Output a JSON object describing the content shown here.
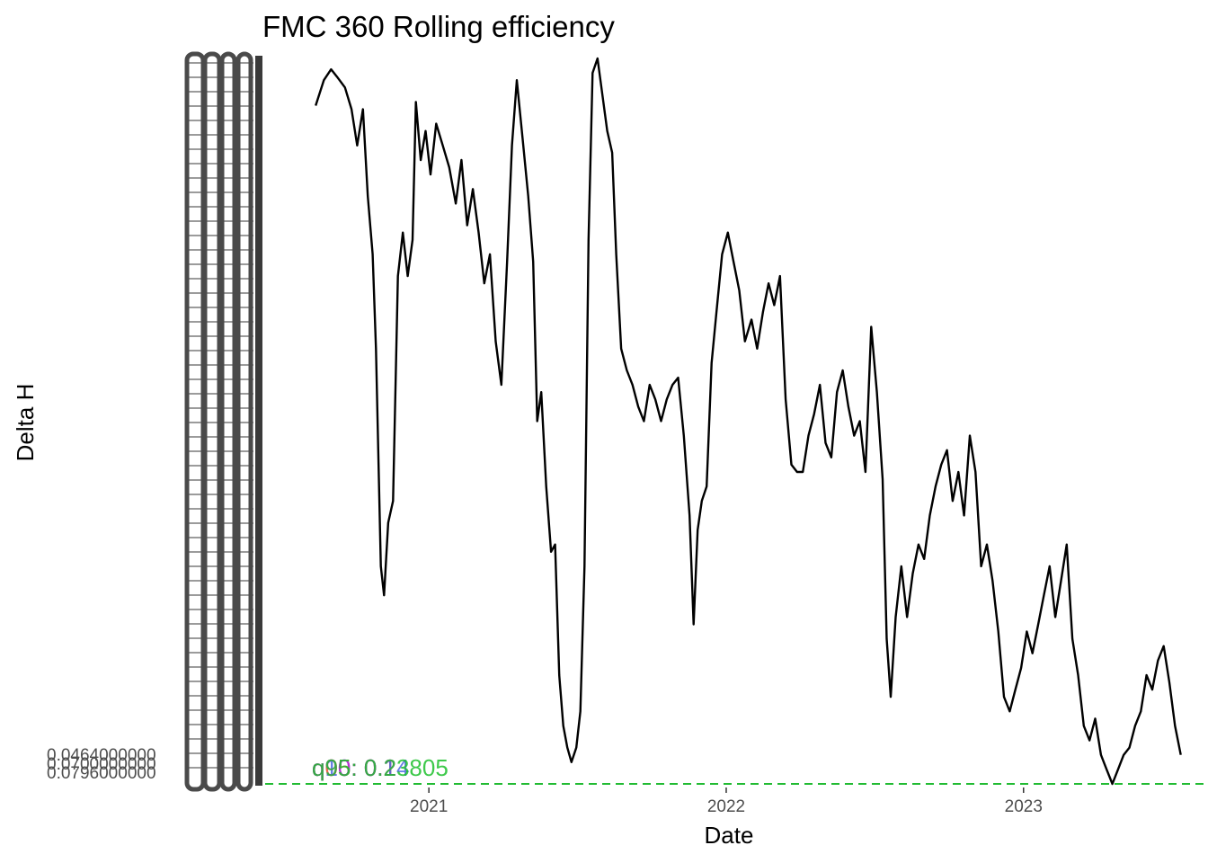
{
  "chart_data": {
    "type": "line",
    "title": "FMC 360 Rolling efficiency",
    "xlabel": "Date",
    "ylabel": "Delta H",
    "x_range": [
      "2020-06-14",
      "2023-07-31"
    ],
    "ylim": [
      0.0,
      1.0
    ],
    "x_ticks": [
      {
        "date": "2021-01-01",
        "label": "2021"
      },
      {
        "date": "2022-01-01",
        "label": "2022"
      },
      {
        "date": "2023-01-01",
        "label": "2023"
      }
    ],
    "y_tick_labels_visible": [
      "0.0464000000",
      "0.0700000000",
      "0.0796000000"
    ],
    "series": [
      {
        "color": "#000000",
        "points": [
          [
            "2020-08-15",
            0.935
          ],
          [
            "2020-08-25",
            0.97
          ],
          [
            "2020-09-03",
            0.985
          ],
          [
            "2020-09-10",
            0.975
          ],
          [
            "2020-09-20",
            0.96
          ],
          [
            "2020-09-28",
            0.93
          ],
          [
            "2020-10-05",
            0.88
          ],
          [
            "2020-10-12",
            0.93
          ],
          [
            "2020-10-18",
            0.81
          ],
          [
            "2020-10-24",
            0.73
          ],
          [
            "2020-10-28",
            0.6
          ],
          [
            "2020-11-03",
            0.3
          ],
          [
            "2020-11-07",
            0.26
          ],
          [
            "2020-11-12",
            0.36
          ],
          [
            "2020-11-18",
            0.39
          ],
          [
            "2020-11-24",
            0.7
          ],
          [
            "2020-11-30",
            0.76
          ],
          [
            "2020-12-06",
            0.7
          ],
          [
            "2020-12-12",
            0.75
          ],
          [
            "2020-12-16",
            0.94
          ],
          [
            "2020-12-22",
            0.86
          ],
          [
            "2020-12-28",
            0.9
          ],
          [
            "2021-01-03",
            0.84
          ],
          [
            "2021-01-10",
            0.91
          ],
          [
            "2021-01-18",
            0.88
          ],
          [
            "2021-01-26",
            0.85
          ],
          [
            "2021-02-03",
            0.8
          ],
          [
            "2021-02-10",
            0.86
          ],
          [
            "2021-02-17",
            0.77
          ],
          [
            "2021-02-24",
            0.82
          ],
          [
            "2021-03-03",
            0.76
          ],
          [
            "2021-03-10",
            0.69
          ],
          [
            "2021-03-17",
            0.73
          ],
          [
            "2021-03-24",
            0.61
          ],
          [
            "2021-03-31",
            0.55
          ],
          [
            "2021-04-07",
            0.72
          ],
          [
            "2021-04-13",
            0.88
          ],
          [
            "2021-04-19",
            0.97
          ],
          [
            "2021-04-26",
            0.89
          ],
          [
            "2021-05-03",
            0.81
          ],
          [
            "2021-05-09",
            0.72
          ],
          [
            "2021-05-14",
            0.5
          ],
          [
            "2021-05-19",
            0.54
          ],
          [
            "2021-05-25",
            0.41
          ],
          [
            "2021-05-31",
            0.32
          ],
          [
            "2021-06-05",
            0.33
          ],
          [
            "2021-06-10",
            0.15
          ],
          [
            "2021-06-15",
            0.08
          ],
          [
            "2021-06-20",
            0.05
          ],
          [
            "2021-06-25",
            0.03
          ],
          [
            "2021-07-01",
            0.05
          ],
          [
            "2021-07-06",
            0.1
          ],
          [
            "2021-07-11",
            0.3
          ],
          [
            "2021-07-16",
            0.75
          ],
          [
            "2021-07-21",
            0.98
          ],
          [
            "2021-07-27",
            1.0
          ],
          [
            "2021-08-02",
            0.95
          ],
          [
            "2021-08-08",
            0.9
          ],
          [
            "2021-08-14",
            0.87
          ],
          [
            "2021-08-19",
            0.73
          ],
          [
            "2021-08-25",
            0.6
          ],
          [
            "2021-09-01",
            0.57
          ],
          [
            "2021-09-08",
            0.55
          ],
          [
            "2021-09-15",
            0.52
          ],
          [
            "2021-09-22",
            0.5
          ],
          [
            "2021-09-29",
            0.55
          ],
          [
            "2021-10-06",
            0.53
          ],
          [
            "2021-10-13",
            0.5
          ],
          [
            "2021-10-20",
            0.53
          ],
          [
            "2021-10-27",
            0.55
          ],
          [
            "2021-11-03",
            0.56
          ],
          [
            "2021-11-10",
            0.48
          ],
          [
            "2021-11-17",
            0.37
          ],
          [
            "2021-11-22",
            0.22
          ],
          [
            "2021-11-27",
            0.35
          ],
          [
            "2021-12-02",
            0.39
          ],
          [
            "2021-12-08",
            0.41
          ],
          [
            "2021-12-14",
            0.58
          ],
          [
            "2021-12-20",
            0.65
          ],
          [
            "2021-12-27",
            0.73
          ],
          [
            "2022-01-03",
            0.76
          ],
          [
            "2022-01-10",
            0.72
          ],
          [
            "2022-01-17",
            0.68
          ],
          [
            "2022-01-24",
            0.61
          ],
          [
            "2022-02-01",
            0.64
          ],
          [
            "2022-02-08",
            0.6
          ],
          [
            "2022-02-15",
            0.65
          ],
          [
            "2022-02-22",
            0.69
          ],
          [
            "2022-03-01",
            0.66
          ],
          [
            "2022-03-08",
            0.7
          ],
          [
            "2022-03-15",
            0.53
          ],
          [
            "2022-03-22",
            0.44
          ],
          [
            "2022-03-29",
            0.43
          ],
          [
            "2022-04-05",
            0.43
          ],
          [
            "2022-04-12",
            0.48
          ],
          [
            "2022-04-19",
            0.51
          ],
          [
            "2022-04-26",
            0.55
          ],
          [
            "2022-05-03",
            0.47
          ],
          [
            "2022-05-10",
            0.45
          ],
          [
            "2022-05-17",
            0.54
          ],
          [
            "2022-05-24",
            0.57
          ],
          [
            "2022-05-31",
            0.52
          ],
          [
            "2022-06-07",
            0.48
          ],
          [
            "2022-06-14",
            0.5
          ],
          [
            "2022-06-21",
            0.43
          ],
          [
            "2022-06-28",
            0.63
          ],
          [
            "2022-07-05",
            0.54
          ],
          [
            "2022-07-12",
            0.42
          ],
          [
            "2022-07-17",
            0.2
          ],
          [
            "2022-07-22",
            0.12
          ],
          [
            "2022-07-28",
            0.23
          ],
          [
            "2022-08-04",
            0.3
          ],
          [
            "2022-08-11",
            0.23
          ],
          [
            "2022-08-18",
            0.29
          ],
          [
            "2022-08-25",
            0.33
          ],
          [
            "2022-09-01",
            0.31
          ],
          [
            "2022-09-08",
            0.37
          ],
          [
            "2022-09-15",
            0.41
          ],
          [
            "2022-09-22",
            0.44
          ],
          [
            "2022-09-29",
            0.46
          ],
          [
            "2022-10-06",
            0.39
          ],
          [
            "2022-10-13",
            0.43
          ],
          [
            "2022-10-20",
            0.37
          ],
          [
            "2022-10-27",
            0.48
          ],
          [
            "2022-11-03",
            0.43
          ],
          [
            "2022-11-10",
            0.3
          ],
          [
            "2022-11-17",
            0.33
          ],
          [
            "2022-11-24",
            0.28
          ],
          [
            "2022-12-01",
            0.21
          ],
          [
            "2022-12-08",
            0.12
          ],
          [
            "2022-12-15",
            0.1
          ],
          [
            "2022-12-22",
            0.13
          ],
          [
            "2022-12-29",
            0.16
          ],
          [
            "2023-01-05",
            0.21
          ],
          [
            "2023-01-12",
            0.18
          ],
          [
            "2023-01-19",
            0.22
          ],
          [
            "2023-01-26",
            0.26
          ],
          [
            "2023-02-02",
            0.3
          ],
          [
            "2023-02-09",
            0.23
          ],
          [
            "2023-02-16",
            0.28
          ],
          [
            "2023-02-23",
            0.33
          ],
          [
            "2023-03-02",
            0.2
          ],
          [
            "2023-03-09",
            0.15
          ],
          [
            "2023-03-16",
            0.08
          ],
          [
            "2023-03-23",
            0.06
          ],
          [
            "2023-03-30",
            0.09
          ],
          [
            "2023-04-06",
            0.04
          ],
          [
            "2023-04-13",
            0.02
          ],
          [
            "2023-04-20",
            0.0
          ],
          [
            "2023-04-27",
            0.02
          ],
          [
            "2023-05-04",
            0.04
          ],
          [
            "2023-05-11",
            0.05
          ],
          [
            "2023-05-18",
            0.08
          ],
          [
            "2023-05-25",
            0.1
          ],
          [
            "2023-06-01",
            0.15
          ],
          [
            "2023-06-08",
            0.13
          ],
          [
            "2023-06-15",
            0.17
          ],
          [
            "2023-06-22",
            0.19
          ],
          [
            "2023-06-29",
            0.14
          ],
          [
            "2023-07-06",
            0.08
          ],
          [
            "2023-07-13",
            0.04
          ]
        ]
      }
    ],
    "reference_lines": [
      {
        "value": 0.0,
        "color": "#22bb33",
        "style": "dashed"
      }
    ],
    "annotations": [
      {
        "text": "q05: 0.1",
        "color": "#e34d2a"
      },
      {
        "text": "q10: 0.14",
        "color": "#4a66e0"
      },
      {
        "text": "q90: 0.2",
        "color": "#cc22cc"
      },
      {
        "text": "q95: 0.23805",
        "color": "#1cbf2c"
      }
    ],
    "grid": false,
    "legend": "none"
  }
}
